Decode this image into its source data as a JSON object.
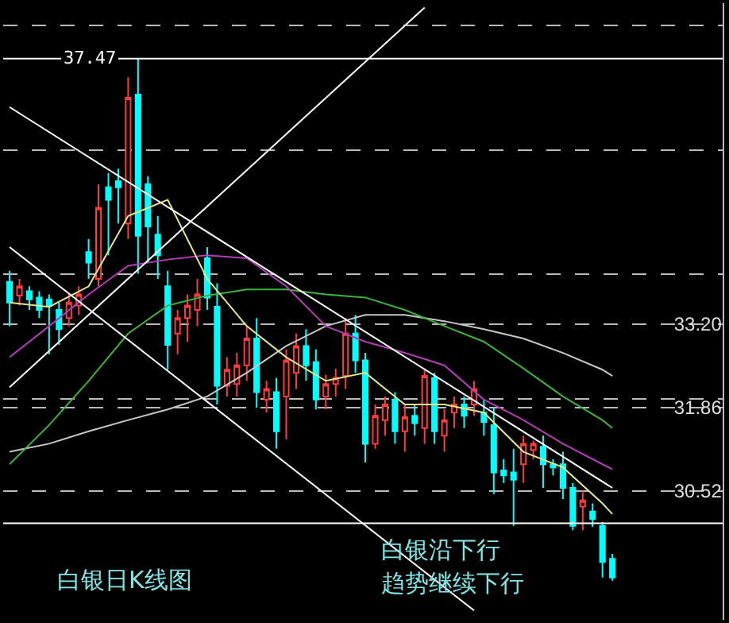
{
  "chart_data": {
    "type": "candlestick",
    "categories": [
      null,
      null,
      null,
      null,
      null,
      null,
      null,
      null,
      null,
      null,
      null,
      null,
      null,
      null,
      null,
      null,
      null,
      null,
      null,
      null,
      null,
      null,
      null,
      null,
      null,
      null,
      null,
      null,
      null,
      null,
      null,
      null,
      null,
      null,
      null,
      null,
      null,
      null,
      null,
      null,
      null,
      null,
      null,
      null,
      null,
      null,
      null,
      null,
      null,
      null,
      null,
      null,
      null,
      null,
      null,
      null,
      null,
      null,
      null,
      null,
      null,
      null
    ],
    "ohlc": [
      [
        33.88,
        34.06,
        33.17,
        33.55
      ],
      [
        33.66,
        33.93,
        33.5,
        33.81
      ],
      [
        33.73,
        33.81,
        33.43,
        33.6
      ],
      [
        33.63,
        33.73,
        33.3,
        33.43
      ],
      [
        33.6,
        33.68,
        32.72,
        33.5
      ],
      [
        33.43,
        33.55,
        32.87,
        33.12
      ],
      [
        33.3,
        33.68,
        33.17,
        33.55
      ],
      [
        33.5,
        33.81,
        33.35,
        33.68
      ],
      [
        34.36,
        34.57,
        33.93,
        34.19
      ],
      [
        33.93,
        35.45,
        33.81,
        35.07
      ],
      [
        35.4,
        35.63,
        34.31,
        35.2
      ],
      [
        35.5,
        35.7,
        34.82,
        35.4
      ],
      [
        34.82,
        37.17,
        34.57,
        36.84
      ],
      [
        36.89,
        37.47,
        34.01,
        34.62
      ],
      [
        35.45,
        35.58,
        34.19,
        34.77
      ],
      [
        34.64,
        34.94,
        33.93,
        34.31
      ],
      [
        33.81,
        34.06,
        32.47,
        32.87
      ],
      [
        33.05,
        33.43,
        32.72,
        33.3
      ],
      [
        33.3,
        33.68,
        32.92,
        33.5
      ],
      [
        33.43,
        33.93,
        33.17,
        33.68
      ],
      [
        34.26,
        34.44,
        33.43,
        33.63
      ],
      [
        33.48,
        33.86,
        31.91,
        32.21
      ],
      [
        32.21,
        32.67,
        32.04,
        32.47
      ],
      [
        32.24,
        32.74,
        32.04,
        32.54
      ],
      [
        32.54,
        33.17,
        32.29,
        32.97
      ],
      [
        32.97,
        33.3,
        31.86,
        32.11
      ],
      [
        31.99,
        32.29,
        31.78,
        32.16
      ],
      [
        32.11,
        32.34,
        31.2,
        31.48
      ],
      [
        32.04,
        32.8,
        31.35,
        32.62
      ],
      [
        32.42,
        33.05,
        32.16,
        32.85
      ],
      [
        32.85,
        33.12,
        32.29,
        32.54
      ],
      [
        32.59,
        32.8,
        31.83,
        31.99
      ],
      [
        32.04,
        32.39,
        31.83,
        32.24
      ],
      [
        32.24,
        32.49,
        32.04,
        32.34
      ],
      [
        32.37,
        33.3,
        32.16,
        33.05
      ],
      [
        33.05,
        33.35,
        32.42,
        32.62
      ],
      [
        32.62,
        32.74,
        30.98,
        31.28
      ],
      [
        31.28,
        31.91,
        31.2,
        31.73
      ],
      [
        31.66,
        32.04,
        31.41,
        31.91
      ],
      [
        31.99,
        32.11,
        31.28,
        31.48
      ],
      [
        31.48,
        31.91,
        31.15,
        31.71
      ],
      [
        31.73,
        31.91,
        31.41,
        31.61
      ],
      [
        31.53,
        32.49,
        31.28,
        32.37
      ],
      [
        32.34,
        32.42,
        31.28,
        31.48
      ],
      [
        31.41,
        31.83,
        31.15,
        31.66
      ],
      [
        31.78,
        32.04,
        31.53,
        31.91
      ],
      [
        31.91,
        32.04,
        31.53,
        31.73
      ],
      [
        31.91,
        32.29,
        31.73,
        32.16
      ],
      [
        31.78,
        31.99,
        31.41,
        31.63
      ],
      [
        31.58,
        31.86,
        30.47,
        30.82
      ],
      [
        30.85,
        31.03,
        30.65,
        30.77
      ],
      [
        30.82,
        31.2,
        29.96,
        30.7
      ],
      [
        30.95,
        31.41,
        30.65,
        31.28
      ],
      [
        31.18,
        31.33,
        31.03,
        31.28
      ],
      [
        31.23,
        31.41,
        30.57,
        30.95
      ],
      [
        30.95,
        31.03,
        30.77,
        30.9
      ],
      [
        30.95,
        31.15,
        30.39,
        30.57
      ],
      [
        30.57,
        30.65,
        29.89,
        29.96
      ],
      [
        30.27,
        30.52,
        29.89,
        30.37
      ],
      [
        30.19,
        30.32,
        29.94,
        30.07
      ],
      [
        29.96,
        30.02,
        29.13,
        29.38
      ],
      [
        29.43,
        29.51,
        29.08,
        29.13
      ]
    ],
    "series": [
      {
        "type": "line",
        "color": "#c8c8c8",
        "values": [
          31.15,
          null,
          null,
          null,
          31.28,
          null,
          null,
          null,
          31.48,
          null,
          null,
          null,
          31.66,
          null,
          null,
          null,
          31.83,
          null,
          null,
          null,
          32.04,
          null,
          null,
          null,
          32.42,
          null,
          null,
          null,
          32.85,
          null,
          null,
          null,
          33.17,
          null,
          null,
          null,
          33.35,
          null,
          null,
          null,
          33.35,
          null,
          null,
          null,
          33.25,
          null,
          null,
          null,
          33.12,
          null,
          null,
          null,
          32.97,
          null,
          null,
          null,
          32.74,
          null,
          null,
          null,
          32.47,
          32.37
        ]
      },
      {
        "type": "line",
        "color": "#3cb43c",
        "values": [
          30.95,
          null,
          null,
          null,
          31.58,
          null,
          null,
          null,
          32.29,
          null,
          null,
          null,
          33.05,
          null,
          null,
          null,
          33.5,
          null,
          null,
          null,
          33.66,
          null,
          null,
          null,
          33.76,
          null,
          null,
          null,
          33.76,
          null,
          null,
          null,
          33.68,
          null,
          null,
          null,
          33.63,
          null,
          null,
          null,
          33.43,
          null,
          null,
          null,
          33.17,
          null,
          null,
          null,
          32.92,
          null,
          null,
          null,
          32.49,
          null,
          null,
          null,
          32.04,
          null,
          null,
          null,
          31.66,
          31.53
        ]
      },
      {
        "type": "line",
        "color": "#b43cb4",
        "values": [
          32.67,
          null,
          null,
          null,
          33.17,
          null,
          null,
          null,
          33.68,
          null,
          null,
          null,
          34.14,
          null,
          null,
          null,
          34.24,
          null,
          null,
          null,
          34.31,
          null,
          null,
          null,
          34.26,
          null,
          null,
          null,
          33.81,
          null,
          null,
          null,
          33.17,
          null,
          null,
          null,
          32.92,
          null,
          null,
          null,
          32.74,
          null,
          null,
          null,
          32.54,
          null,
          null,
          null,
          31.99,
          null,
          null,
          null,
          31.66,
          null,
          null,
          null,
          31.28,
          null,
          null,
          null,
          30.95,
          30.87
        ]
      },
      {
        "type": "line",
        "color": "#e6e68c",
        "values": [
          33.55,
          null,
          null,
          null,
          33.48,
          null,
          null,
          null,
          33.81,
          null,
          null,
          null,
          34.94,
          null,
          null,
          null,
          35.2,
          null,
          null,
          null,
          33.93,
          null,
          null,
          null,
          33.17,
          null,
          null,
          null,
          32.67,
          null,
          null,
          null,
          32.29,
          null,
          null,
          null,
          32.42,
          null,
          null,
          null,
          31.91,
          null,
          null,
          null,
          31.91,
          null,
          null,
          null,
          31.78,
          null,
          null,
          null,
          31.15,
          null,
          null,
          null,
          30.9,
          null,
          null,
          null,
          30.32,
          30.15
        ]
      },
      {
        "type": "line",
        "color": "#ffffff",
        "values": [
          36.69,
          null,
          null,
          null,
          null,
          null,
          null,
          null,
          null,
          null,
          null,
          null,
          null,
          null,
          null,
          null,
          null,
          null,
          null,
          null,
          null,
          null,
          null,
          null,
          null,
          null,
          null,
          null,
          null,
          null,
          null,
          null,
          null,
          null,
          null,
          null,
          null,
          null,
          null,
          null,
          null,
          null,
          null,
          null,
          null,
          null,
          null,
          null,
          null,
          null,
          null,
          null,
          null,
          null,
          null,
          null,
          null,
          null,
          null,
          null,
          null,
          30.57
        ]
      },
      {
        "type": "line",
        "color": "#ffffff",
        "values": [
          34.44,
          null,
          null,
          null,
          null,
          null,
          null,
          null,
          null,
          null,
          null,
          null,
          null,
          null,
          null,
          null,
          null,
          null,
          null,
          null,
          null,
          null,
          null,
          null,
          null,
          null,
          null,
          null,
          null,
          null,
          null,
          null,
          null,
          null,
          null,
          null,
          null,
          null,
          null,
          null,
          null,
          null,
          null,
          null,
          null,
          null,
          null,
          28.6,
          null,
          null,
          null,
          null,
          null,
          null,
          null,
          null,
          null,
          null,
          null,
          null,
          null,
          null
        ]
      },
      {
        "type": "line",
        "color": "#ffffff",
        "values": [
          32.19,
          null,
          null,
          null,
          null,
          null,
          null,
          null,
          null,
          null,
          null,
          null,
          null,
          null,
          null,
          null,
          null,
          null,
          null,
          null,
          null,
          null,
          null,
          null,
          null,
          null,
          null,
          null,
          null,
          null,
          null,
          null,
          null,
          null,
          null,
          null,
          null,
          null,
          null,
          null,
          null,
          null,
          38.29,
          null,
          null,
          null,
          null,
          null,
          null,
          null,
          null,
          null,
          null,
          null,
          null,
          null,
          null,
          null,
          null,
          null,
          null,
          null
        ]
      }
    ],
    "ylim": [
      28.45,
      38.36
    ],
    "yticks": [
      {
        "value": 32,
        "label": null
      },
      {
        "value": 34,
        "label": null
      },
      {
        "value": 36,
        "label": null
      },
      {
        "value": 38,
        "label": null
      },
      {
        "value": 30.52,
        "label": "30.52"
      },
      {
        "value": 31.86,
        "label": "31.86"
      },
      {
        "value": 33.2,
        "label": "33.20"
      }
    ],
    "grid": "y",
    "tick_labels": "y",
    "ref_lines": [
      {
        "axis": "y",
        "value": 37.47,
        "label": "37.47",
        "color": "#ffffff",
        "line_style": "solid"
      },
      {
        "axis": "y",
        "value": 30.0,
        "color": "#ffffff",
        "line_style": "solid"
      }
    ],
    "annotations": [
      "白银日K线图",
      "白银沿下行",
      "趋势继续下行"
    ]
  }
}
